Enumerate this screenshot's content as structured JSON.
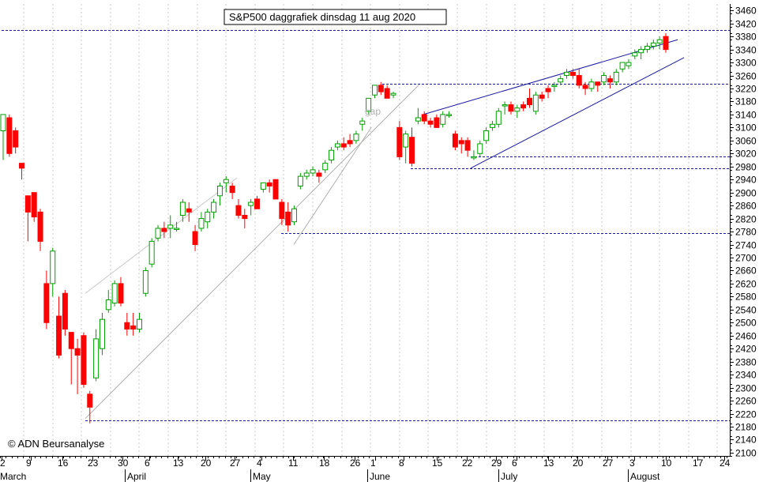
{
  "chart_data": {
    "type": "candlestick",
    "title": "S&P500 daggrafiek dinsdag 11 aug 2020",
    "copyright": "© ADN Beursanalyse",
    "annotation": "gap",
    "ylim": [
      2090,
      3480
    ],
    "y_ticks": [
      3460,
      3420,
      3380,
      3340,
      3300,
      3260,
      3220,
      3180,
      3140,
      3100,
      3060,
      3020,
      2980,
      2940,
      2900,
      2860,
      2820,
      2780,
      2740,
      2700,
      2660,
      2620,
      2580,
      2540,
      2500,
      2460,
      2420,
      2380,
      2340,
      2300,
      2260,
      2220,
      2180,
      2140,
      2100
    ],
    "x_day_labels": [
      "2",
      "9",
      "16",
      "23",
      "30",
      "6",
      "13",
      "20",
      "27",
      "4",
      "11",
      "18",
      "26",
      "1",
      "8",
      "15",
      "22",
      "29",
      "6",
      "13",
      "20",
      "27",
      "3",
      "10",
      "17",
      "24"
    ],
    "x_month_labels": [
      "March",
      "April",
      "May",
      "June",
      "July",
      "August"
    ],
    "up_color": "#00a000",
    "down_color": "#ff0000",
    "grid": "vertical dotted",
    "horizontal_levels": [
      3400,
      3235,
      3010,
      2975,
      2775,
      2200
    ],
    "candles": [
      {
        "o": 3090,
        "h": 3140,
        "l": 3000,
        "c": 3140
      },
      {
        "o": 3130,
        "h": 3140,
        "l": 3010,
        "c": 3020
      },
      {
        "o": 3090,
        "h": 3100,
        "l": 3020,
        "c": 3040
      },
      {
        "o": 2990,
        "h": 2990,
        "l": 2940,
        "c": 2975
      },
      {
        "o": 2890,
        "h": 2890,
        "l": 2750,
        "c": 2840
      },
      {
        "o": 2900,
        "h": 2900,
        "l": 2810,
        "c": 2825
      },
      {
        "o": 2840,
        "h": 2850,
        "l": 2720,
        "c": 2750
      },
      {
        "o": 2620,
        "h": 2660,
        "l": 2480,
        "c": 2500
      },
      {
        "o": 2620,
        "h": 2730,
        "l": 2580,
        "c": 2720
      },
      {
        "o": 2520,
        "h": 2580,
        "l": 2390,
        "c": 2400
      },
      {
        "o": 2590,
        "h": 2600,
        "l": 2460,
        "c": 2480
      },
      {
        "o": 2470,
        "h": 2470,
        "l": 2310,
        "c": 2420
      },
      {
        "o": 2420,
        "h": 2450,
        "l": 2280,
        "c": 2400
      },
      {
        "o": 2460,
        "h": 2470,
        "l": 2300,
        "c": 2310
      },
      {
        "o": 2280,
        "h": 2290,
        "l": 2190,
        "c": 2240
      },
      {
        "o": 2330,
        "h": 2480,
        "l": 2320,
        "c": 2450
      },
      {
        "o": 2420,
        "h": 2530,
        "l": 2400,
        "c": 2510
      },
      {
        "o": 2540,
        "h": 2600,
        "l": 2530,
        "c": 2570
      },
      {
        "o": 2560,
        "h": 2630,
        "l": 2550,
        "c": 2620
      },
      {
        "o": 2620,
        "h": 2640,
        "l": 2550,
        "c": 2560
      },
      {
        "o": 2500,
        "h": 2530,
        "l": 2460,
        "c": 2480
      },
      {
        "o": 2490,
        "h": 2530,
        "l": 2460,
        "c": 2480
      },
      {
        "o": 2480,
        "h": 2530,
        "l": 2470,
        "c": 2510
      },
      {
        "o": 2590,
        "h": 2670,
        "l": 2580,
        "c": 2660
      },
      {
        "o": 2680,
        "h": 2760,
        "l": 2670,
        "c": 2750
      },
      {
        "o": 2760,
        "h": 2800,
        "l": 2750,
        "c": 2790
      },
      {
        "o": 2790,
        "h": 2810,
        "l": 2760,
        "c": 2780
      },
      {
        "o": 2790,
        "h": 2830,
        "l": 2760,
        "c": 2800
      },
      {
        "o": 2790,
        "h": 2810,
        "l": 2780,
        "c": 2790
      },
      {
        "o": 2830,
        "h": 2880,
        "l": 2810,
        "c": 2870
      },
      {
        "o": 2850,
        "h": 2870,
        "l": 2810,
        "c": 2840
      },
      {
        "o": 2780,
        "h": 2800,
        "l": 2720,
        "c": 2740
      },
      {
        "o": 2790,
        "h": 2840,
        "l": 2780,
        "c": 2820
      },
      {
        "o": 2810,
        "h": 2850,
        "l": 2790,
        "c": 2840
      },
      {
        "o": 2840,
        "h": 2880,
        "l": 2820,
        "c": 2870
      },
      {
        "o": 2890,
        "h": 2930,
        "l": 2860,
        "c": 2920
      },
      {
        "o": 2930,
        "h": 2950,
        "l": 2900,
        "c": 2940
      },
      {
        "o": 2920,
        "h": 2930,
        "l": 2880,
        "c": 2900
      },
      {
        "o": 2860,
        "h": 2880,
        "l": 2820,
        "c": 2830
      },
      {
        "o": 2830,
        "h": 2850,
        "l": 2790,
        "c": 2820
      },
      {
        "o": 2860,
        "h": 2880,
        "l": 2830,
        "c": 2870
      },
      {
        "o": 2880,
        "h": 2890,
        "l": 2850,
        "c": 2850
      },
      {
        "o": 2910,
        "h": 2930,
        "l": 2900,
        "c": 2930
      },
      {
        "o": 2930,
        "h": 2940,
        "l": 2900,
        "c": 2920
      },
      {
        "o": 2940,
        "h": 2940,
        "l": 2880,
        "c": 2880
      },
      {
        "o": 2870,
        "h": 2880,
        "l": 2800,
        "c": 2820
      },
      {
        "o": 2840,
        "h": 2870,
        "l": 2780,
        "c": 2800
      },
      {
        "o": 2810,
        "h": 2860,
        "l": 2800,
        "c": 2850
      },
      {
        "o": 2920,
        "h": 2960,
        "l": 2910,
        "c": 2950
      },
      {
        "o": 2950,
        "h": 2970,
        "l": 2940,
        "c": 2960
      },
      {
        "o": 2960,
        "h": 2980,
        "l": 2950,
        "c": 2970
      },
      {
        "o": 2960,
        "h": 2970,
        "l": 2930,
        "c": 2950
      },
      {
        "o": 2970,
        "h": 3000,
        "l": 2960,
        "c": 2990
      },
      {
        "o": 3000,
        "h": 3040,
        "l": 2990,
        "c": 3030
      },
      {
        "o": 3040,
        "h": 3060,
        "l": 3030,
        "c": 3050
      },
      {
        "o": 3050,
        "h": 3070,
        "l": 3030,
        "c": 3040
      },
      {
        "o": 3060,
        "h": 3080,
        "l": 3040,
        "c": 3050
      },
      {
        "o": 3060,
        "h": 3090,
        "l": 3050,
        "c": 3080
      },
      {
        "o": 3110,
        "h": 3130,
        "l": 3090,
        "c": 3120
      },
      {
        "o": 3150,
        "h": 3190,
        "l": 3140,
        "c": 3190
      },
      {
        "o": 3200,
        "h": 3230,
        "l": 3190,
        "c": 3230
      },
      {
        "o": 3230,
        "h": 3240,
        "l": 3200,
        "c": 3210
      },
      {
        "o": 3220,
        "h": 3230,
        "l": 3190,
        "c": 3190
      },
      {
        "o": 3200,
        "h": 3210,
        "l": 3190,
        "c": 3205
      },
      {
        "o": 3100,
        "h": 3120,
        "l": 3000,
        "c": 3010
      },
      {
        "o": 3040,
        "h": 3090,
        "l": 2990,
        "c": 3080
      },
      {
        "o": 3070,
        "h": 3100,
        "l": 2980,
        "c": 2990
      },
      {
        "o": 3120,
        "h": 3160,
        "l": 3110,
        "c": 3130
      },
      {
        "o": 3140,
        "h": 3150,
        "l": 3110,
        "c": 3120
      },
      {
        "o": 3120,
        "h": 3130,
        "l": 3100,
        "c": 3110
      },
      {
        "o": 3130,
        "h": 3140,
        "l": 3100,
        "c": 3100
      },
      {
        "o": 3110,
        "h": 3150,
        "l": 3100,
        "c": 3140
      },
      {
        "o": 3140,
        "h": 3150,
        "l": 3130,
        "c": 3140
      },
      {
        "o": 3080,
        "h": 3090,
        "l": 3030,
        "c": 3040
      },
      {
        "o": 3060,
        "h": 3070,
        "l": 3020,
        "c": 3050
      },
      {
        "o": 3060,
        "h": 3070,
        "l": 3010,
        "c": 3030
      },
      {
        "o": 3010,
        "h": 3030,
        "l": 3000,
        "c": 3010
      },
      {
        "o": 3020,
        "h": 3060,
        "l": 3010,
        "c": 3050
      },
      {
        "o": 3060,
        "h": 3100,
        "l": 3050,
        "c": 3090
      },
      {
        "o": 3100,
        "h": 3120,
        "l": 3090,
        "c": 3110
      },
      {
        "o": 3110,
        "h": 3160,
        "l": 3100,
        "c": 3150
      },
      {
        "o": 3170,
        "h": 3180,
        "l": 3140,
        "c": 3170
      },
      {
        "o": 3170,
        "h": 3180,
        "l": 3140,
        "c": 3150
      },
      {
        "o": 3150,
        "h": 3170,
        "l": 3130,
        "c": 3160
      },
      {
        "o": 3170,
        "h": 3180,
        "l": 3150,
        "c": 3160
      },
      {
        "o": 3190,
        "h": 3220,
        "l": 3160,
        "c": 3170
      },
      {
        "o": 3150,
        "h": 3210,
        "l": 3140,
        "c": 3200
      },
      {
        "o": 3200,
        "h": 3210,
        "l": 3180,
        "c": 3190
      },
      {
        "o": 3220,
        "h": 3230,
        "l": 3190,
        "c": 3210
      },
      {
        "o": 3230,
        "h": 3240,
        "l": 3210,
        "c": 3230
      },
      {
        "o": 3240,
        "h": 3260,
        "l": 3230,
        "c": 3250
      },
      {
        "o": 3260,
        "h": 3280,
        "l": 3250,
        "c": 3270
      },
      {
        "o": 3270,
        "h": 3280,
        "l": 3250,
        "c": 3260
      },
      {
        "o": 3260,
        "h": 3280,
        "l": 3220,
        "c": 3230
      },
      {
        "o": 3230,
        "h": 3240,
        "l": 3200,
        "c": 3220
      },
      {
        "o": 3220,
        "h": 3250,
        "l": 3210,
        "c": 3240
      },
      {
        "o": 3240,
        "h": 3240,
        "l": 3210,
        "c": 3230
      },
      {
        "o": 3240,
        "h": 3270,
        "l": 3230,
        "c": 3260
      },
      {
        "o": 3250,
        "h": 3260,
        "l": 3220,
        "c": 3240
      },
      {
        "o": 3240,
        "h": 3280,
        "l": 3230,
        "c": 3270
      },
      {
        "o": 3280,
        "h": 3300,
        "l": 3270,
        "c": 3300
      },
      {
        "o": 3290,
        "h": 3310,
        "l": 3280,
        "c": 3300
      },
      {
        "o": 3320,
        "h": 3340,
        "l": 3310,
        "c": 3330
      },
      {
        "o": 3330,
        "h": 3350,
        "l": 3310,
        "c": 3340
      },
      {
        "o": 3340,
        "h": 3360,
        "l": 3330,
        "c": 3350
      },
      {
        "o": 3350,
        "h": 3370,
        "l": 3340,
        "c": 3360
      },
      {
        "o": 3360,
        "h": 3380,
        "l": 3340,
        "c": 3370
      },
      {
        "o": 3380,
        "h": 3390,
        "l": 3330,
        "c": 3340
      }
    ]
  }
}
